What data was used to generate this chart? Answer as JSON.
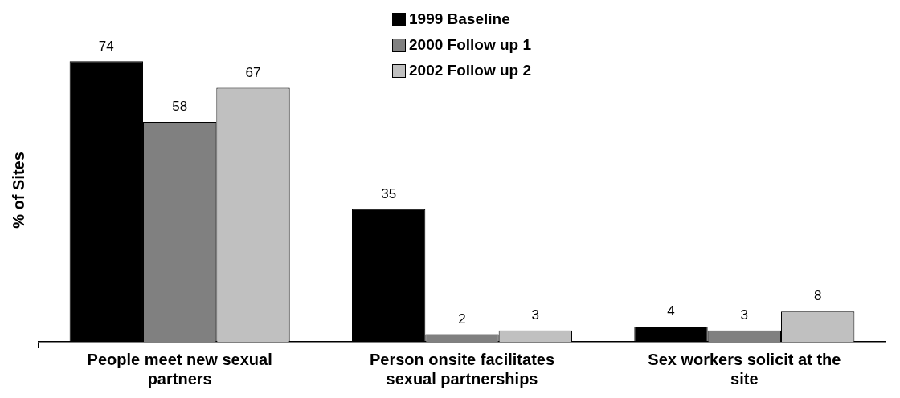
{
  "chart_data": {
    "type": "bar",
    "ylabel": "% of Sites",
    "categories": [
      "People meet new sexual partners",
      "Person onsite facilitates sexual partnerships",
      "Sex workers solicit at the site"
    ],
    "series": [
      {
        "name": "1999 Baseline",
        "color": "#000000",
        "values": [
          74,
          35,
          4
        ]
      },
      {
        "name": "2000 Follow up 1",
        "color": "#808080",
        "values": [
          58,
          2,
          3
        ]
      },
      {
        "name": "2002 Follow up 2",
        "color": "#c0c0c0",
        "values": [
          67,
          3,
          8
        ]
      }
    ],
    "data_labels": true,
    "legend": "top",
    "grid": false
  }
}
